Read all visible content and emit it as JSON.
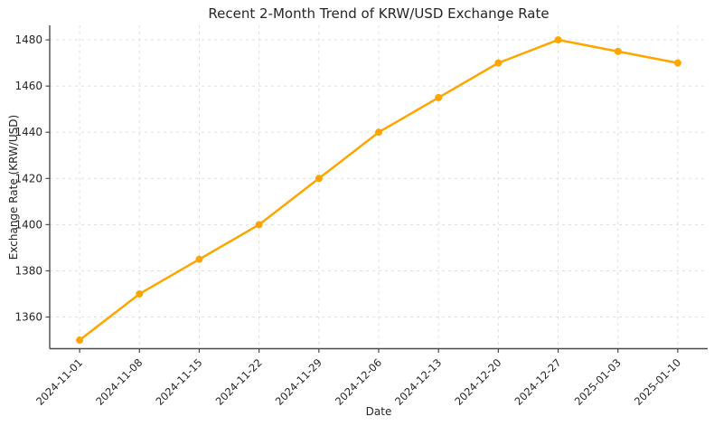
{
  "chart_data": {
    "type": "line",
    "title": "Recent 2-Month Trend of KRW/USD Exchange Rate",
    "xlabel": "Date",
    "ylabel": "Exchange Rate (KRW/USD)",
    "x": [
      "2024-11-01",
      "2024-11-08",
      "2024-11-15",
      "2024-11-22",
      "2024-11-29",
      "2024-12-06",
      "2024-12-13",
      "2024-12-20",
      "2024-12-27",
      "2025-01-03",
      "2025-01-10"
    ],
    "series": [
      {
        "name": "KRW/USD",
        "values": [
          1350,
          1370,
          1385,
          1400,
          1420,
          1440,
          1455,
          1470,
          1480,
          1475,
          1470
        ]
      }
    ],
    "yticks": [
      1360,
      1380,
      1400,
      1420,
      1440,
      1460,
      1480
    ],
    "ylim": [
      1346.3,
      1486.3
    ],
    "xlim_index": [
      -0.5,
      10.5
    ],
    "x_tick_rotation_deg": 45,
    "grid": "on",
    "grid_style": "dashed",
    "legend": "none",
    "line_color": "#FFA500",
    "marker": "circle",
    "marker_radius": 4
  }
}
